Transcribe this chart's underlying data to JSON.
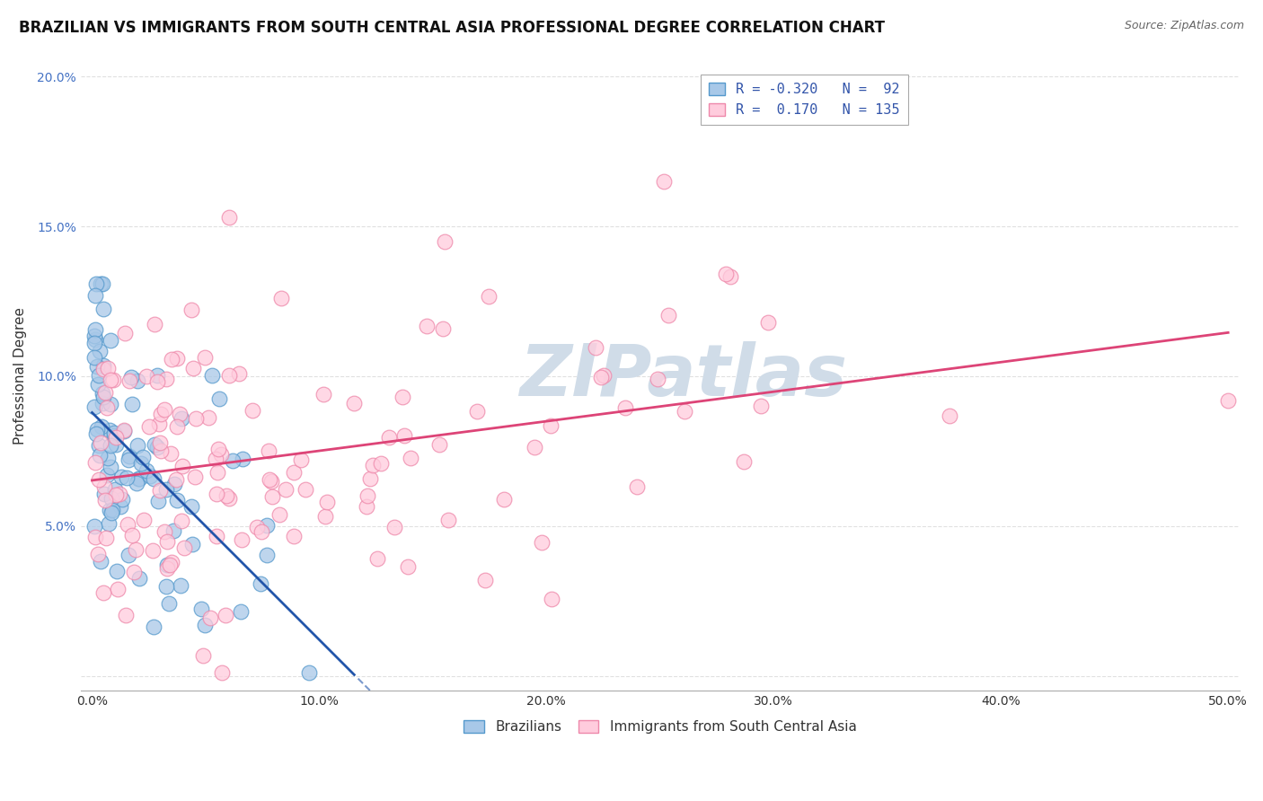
{
  "title": "BRAZILIAN VS IMMIGRANTS FROM SOUTH CENTRAL ASIA PROFESSIONAL DEGREE CORRELATION CHART",
  "source": "Source: ZipAtlas.com",
  "ylabel": "Professional Degree",
  "x_ticks": [
    0.0,
    0.1,
    0.2,
    0.3,
    0.4,
    0.5
  ],
  "x_tick_labels": [
    "0.0%",
    "10.0%",
    "20.0%",
    "30.0%",
    "40.0%",
    "50.0%"
  ],
  "y_ticks": [
    0.0,
    0.05,
    0.1,
    0.15,
    0.2
  ],
  "y_tick_labels": [
    "",
    "5.0%",
    "10.0%",
    "15.0%",
    "20.0%"
  ],
  "xlim": [
    -0.005,
    0.505
  ],
  "ylim": [
    -0.005,
    0.205
  ],
  "series1_color": "#a8c8e8",
  "series1_edge": "#5599cc",
  "series1_label": "Brazilians",
  "series1_R": -0.32,
  "series1_N": 92,
  "series1_line_color": "#2255aa",
  "series2_color": "#ffccdd",
  "series2_edge": "#ee88aa",
  "series2_label": "Immigrants from South Central Asia",
  "series2_R": 0.17,
  "series2_N": 135,
  "series2_line_color": "#dd4477",
  "watermark_color": "#d0dce8",
  "grid_color": "#dddddd",
  "background_color": "#ffffff",
  "title_fontsize": 12,
  "axis_label_fontsize": 11,
  "tick_fontsize": 10,
  "marker_size": 12,
  "seed": 42
}
